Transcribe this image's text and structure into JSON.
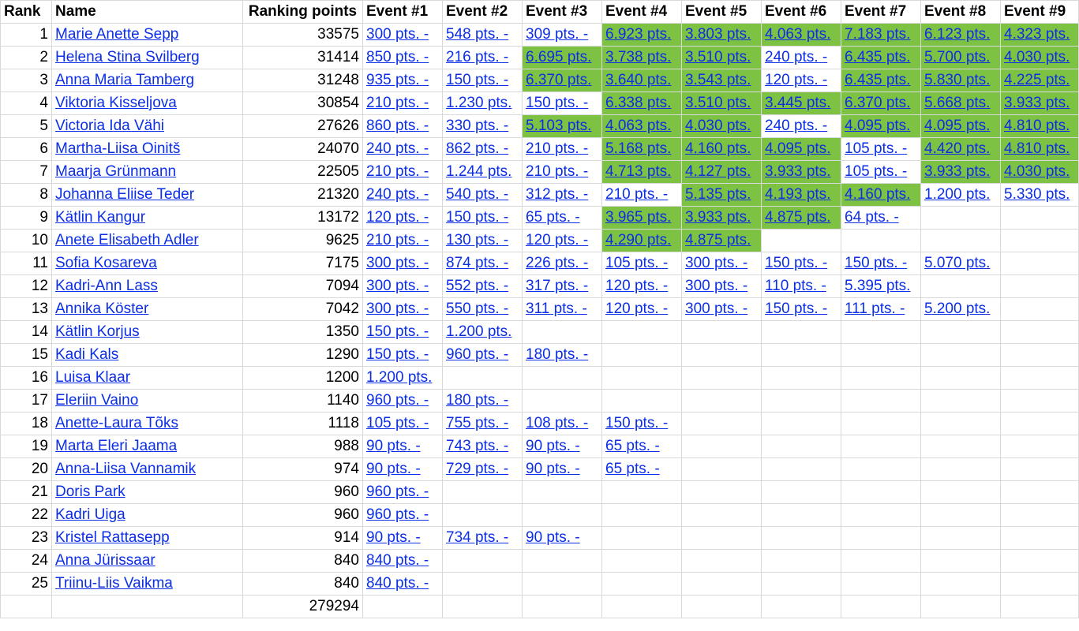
{
  "headers": {
    "rank": "Rank",
    "name": "Name",
    "points": "Ranking points",
    "events": [
      "Event #1",
      "Event #2",
      "Event #3",
      "Event #4",
      "Event #5",
      "Event #6",
      "Event #7",
      "Event #8",
      "Event #9"
    ]
  },
  "highlight_color": "#7dc242",
  "link_color": "#0b2ee6",
  "rows": [
    {
      "rank": "1",
      "name": "Marie Anette Sepp",
      "points": "33575",
      "events": [
        "300 pts. -",
        "548 pts. -",
        "309 pts. -",
        "6.923 pts.",
        "3.803 pts.",
        "4.063 pts.",
        "7.183 pts.",
        "6.123 pts.",
        "4.323 pts."
      ],
      "highlight": [
        false,
        false,
        false,
        true,
        true,
        true,
        true,
        true,
        true
      ]
    },
    {
      "rank": "2",
      "name": "Helena Stina Svilberg",
      "points": "31414",
      "events": [
        "850 pts. -",
        "216 pts. -",
        "6.695 pts.",
        "3.738 pts.",
        "3.510 pts.",
        "240 pts. -",
        "6.435 pts.",
        "5.700 pts.",
        "4.030 pts."
      ],
      "highlight": [
        false,
        false,
        true,
        true,
        true,
        false,
        true,
        true,
        true
      ]
    },
    {
      "rank": "3",
      "name": "Anna Maria Tamberg",
      "points": "31248",
      "events": [
        "935 pts. -",
        "150 pts. -",
        "6.370 pts.",
        "3.640 pts.",
        "3.543 pts.",
        "120 pts. -",
        "6.435 pts.",
        "5.830 pts.",
        "4.225 pts."
      ],
      "highlight": [
        false,
        false,
        true,
        true,
        true,
        false,
        true,
        true,
        true
      ]
    },
    {
      "rank": "4",
      "name": "Viktoria Kisseljova",
      "points": "30854",
      "events": [
        "210 pts. -",
        "1.230 pts.",
        "150 pts. -",
        "6.338 pts.",
        "3.510 pts.",
        "3.445 pts.",
        "6.370 pts.",
        "5.668 pts.",
        "3.933 pts."
      ],
      "highlight": [
        false,
        false,
        false,
        true,
        true,
        true,
        true,
        true,
        true
      ]
    },
    {
      "rank": "5",
      "name": "Victoria Ida Vähi",
      "points": "27626",
      "events": [
        "860 pts. -",
        "330 pts. -",
        "5.103 pts.",
        "4.063 pts.",
        "4.030 pts.",
        "240 pts. -",
        "4.095 pts.",
        "4.095 pts.",
        "4.810 pts."
      ],
      "highlight": [
        false,
        false,
        true,
        true,
        true,
        false,
        true,
        true,
        true
      ]
    },
    {
      "rank": "6",
      "name": "Martha-Liisa Oinitš",
      "points": "24070",
      "events": [
        "240 pts. -",
        "862 pts. -",
        "210 pts. -",
        "5.168 pts.",
        "4.160 pts.",
        "4.095 pts.",
        "105 pts. -",
        "4.420 pts.",
        "4.810 pts."
      ],
      "highlight": [
        false,
        false,
        false,
        true,
        true,
        true,
        false,
        true,
        true
      ]
    },
    {
      "rank": "7",
      "name": "Maarja Grünmann",
      "points": "22505",
      "events": [
        "210 pts. -",
        "1.244 pts.",
        "210 pts. -",
        "4.713 pts.",
        "4.127 pts.",
        "3.933 pts.",
        "105 pts. -",
        "3.933 pts.",
        "4.030 pts."
      ],
      "highlight": [
        false,
        false,
        false,
        true,
        true,
        true,
        false,
        true,
        true
      ]
    },
    {
      "rank": "8",
      "name": "Johanna Eliise Teder",
      "points": "21320",
      "events": [
        "240 pts. -",
        "540 pts. -",
        "312 pts. -",
        "210 pts. -",
        "5.135 pts.",
        "4.193 pts.",
        "4.160 pts.",
        "1.200 pts.",
        "5.330 pts."
      ],
      "highlight": [
        false,
        false,
        false,
        false,
        true,
        true,
        true,
        false,
        false
      ]
    },
    {
      "rank": "9",
      "name": "Kätlin Kangur",
      "points": "13172",
      "events": [
        "120 pts. -",
        "150 pts. -",
        "65 pts. -",
        "3.965 pts.",
        "3.933 pts.",
        "4.875 pts.",
        "64 pts. -",
        "",
        ""
      ],
      "highlight": [
        false,
        false,
        false,
        true,
        true,
        true,
        false,
        false,
        false
      ]
    },
    {
      "rank": "10",
      "name": "Anete Elisabeth Adler",
      "points": "9625",
      "events": [
        "210 pts. -",
        "130 pts. -",
        "120 pts. -",
        "4.290 pts.",
        "4.875 pts.",
        "",
        "",
        "",
        ""
      ],
      "highlight": [
        false,
        false,
        false,
        true,
        true,
        false,
        false,
        false,
        false
      ]
    },
    {
      "rank": "11",
      "name": "Sofia Kosareva",
      "points": "7175",
      "events": [
        "300 pts. -",
        "874 pts. -",
        "226 pts. -",
        "105 pts. -",
        "300 pts. -",
        "150 pts. -",
        "150 pts. -",
        "5.070 pts.",
        ""
      ],
      "highlight": [
        false,
        false,
        false,
        false,
        false,
        false,
        false,
        false,
        false
      ]
    },
    {
      "rank": "12",
      "name": "Kadri-Ann Lass",
      "points": "7094",
      "events": [
        "300 pts. -",
        "552 pts. -",
        "317 pts. -",
        "120 pts. -",
        "300 pts. -",
        "110 pts. -",
        "5.395 pts.",
        "",
        ""
      ],
      "highlight": [
        false,
        false,
        false,
        false,
        false,
        false,
        false,
        false,
        false
      ]
    },
    {
      "rank": "13",
      "name": "Annika Köster",
      "points": "7042",
      "events": [
        "300 pts. -",
        "550 pts. -",
        "311 pts. -",
        "120 pts. -",
        "300 pts. -",
        "150 pts. -",
        "111 pts. -",
        "5.200 pts.",
        ""
      ],
      "highlight": [
        false,
        false,
        false,
        false,
        false,
        false,
        false,
        false,
        false
      ]
    },
    {
      "rank": "14",
      "name": "Kätlin Korjus",
      "points": "1350",
      "events": [
        "150 pts. -",
        "1.200 pts.",
        "",
        "",
        "",
        "",
        "",
        "",
        ""
      ],
      "highlight": [
        false,
        false,
        false,
        false,
        false,
        false,
        false,
        false,
        false
      ]
    },
    {
      "rank": "15",
      "name": "Kadi Kals",
      "points": "1290",
      "events": [
        "150 pts. -",
        "960 pts. -",
        "180 pts. -",
        "",
        "",
        "",
        "",
        "",
        ""
      ],
      "highlight": [
        false,
        false,
        false,
        false,
        false,
        false,
        false,
        false,
        false
      ]
    },
    {
      "rank": "16",
      "name": "Luisa Klaar",
      "points": "1200",
      "events": [
        "1.200 pts.",
        "",
        "",
        "",
        "",
        "",
        "",
        "",
        ""
      ],
      "highlight": [
        false,
        false,
        false,
        false,
        false,
        false,
        false,
        false,
        false
      ]
    },
    {
      "rank": "17",
      "name": "Eleriin Vaino",
      "points": "1140",
      "events": [
        "960 pts. -",
        "180 pts. -",
        "",
        "",
        "",
        "",
        "",
        "",
        ""
      ],
      "highlight": [
        false,
        false,
        false,
        false,
        false,
        false,
        false,
        false,
        false
      ]
    },
    {
      "rank": "18",
      "name": "Anette-Laura Tõks",
      "points": "1118",
      "events": [
        "105 pts. -",
        "755 pts. -",
        "108 pts. -",
        "150 pts. -",
        "",
        "",
        "",
        "",
        ""
      ],
      "highlight": [
        false,
        false,
        false,
        false,
        false,
        false,
        false,
        false,
        false
      ]
    },
    {
      "rank": "19",
      "name": "Marta Eleri Jaama",
      "points": "988",
      "events": [
        "90 pts. -",
        "743 pts. -",
        "90 pts. -",
        "65 pts. -",
        "",
        "",
        "",
        "",
        ""
      ],
      "highlight": [
        false,
        false,
        false,
        false,
        false,
        false,
        false,
        false,
        false
      ]
    },
    {
      "rank": "20",
      "name": "Anna-Liisa Vannamik",
      "points": "974",
      "events": [
        "90 pts. -",
        "729 pts. -",
        "90 pts. -",
        "65 pts. -",
        "",
        "",
        "",
        "",
        ""
      ],
      "highlight": [
        false,
        false,
        false,
        false,
        false,
        false,
        false,
        false,
        false
      ]
    },
    {
      "rank": "21",
      "name": "Doris Park",
      "points": "960",
      "events": [
        "960 pts. -",
        "",
        "",
        "",
        "",
        "",
        "",
        "",
        ""
      ],
      "highlight": [
        false,
        false,
        false,
        false,
        false,
        false,
        false,
        false,
        false
      ]
    },
    {
      "rank": "22",
      "name": "Kadri Uiga",
      "points": "960",
      "events": [
        "960 pts. -",
        "",
        "",
        "",
        "",
        "",
        "",
        "",
        ""
      ],
      "highlight": [
        false,
        false,
        false,
        false,
        false,
        false,
        false,
        false,
        false
      ]
    },
    {
      "rank": "23",
      "name": "Kristel Rattasepp",
      "points": "914",
      "events": [
        "90 pts. -",
        "734 pts. -",
        "90 pts. -",
        "",
        "",
        "",
        "",
        "",
        ""
      ],
      "highlight": [
        false,
        false,
        false,
        false,
        false,
        false,
        false,
        false,
        false
      ]
    },
    {
      "rank": "24",
      "name": "Anna Jürissaar",
      "points": "840",
      "events": [
        "840 pts. -",
        "",
        "",
        "",
        "",
        "",
        "",
        "",
        ""
      ],
      "highlight": [
        false,
        false,
        false,
        false,
        false,
        false,
        false,
        false,
        false
      ]
    },
    {
      "rank": "25",
      "name": "Triinu-Liis Vaikma",
      "points": "840",
      "events": [
        "840 pts. -",
        "",
        "",
        "",
        "",
        "",
        "",
        "",
        ""
      ],
      "highlight": [
        false,
        false,
        false,
        false,
        false,
        false,
        false,
        false,
        false
      ]
    }
  ],
  "total": "279294"
}
